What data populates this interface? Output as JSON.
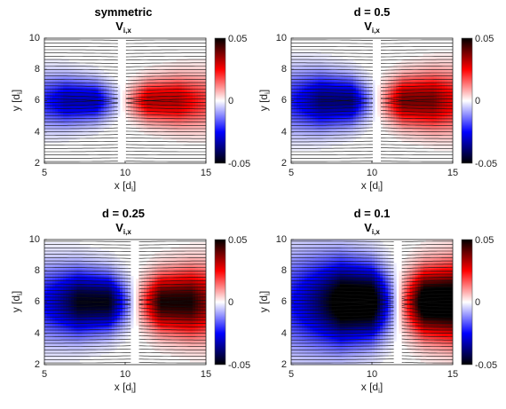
{
  "chart_data": [
    {
      "type": "heatmap",
      "title_line1": "symmetric",
      "title_base": "V",
      "title_sub": "i,x",
      "xlabel_base": "x [d",
      "xlabel_sub": "i",
      "xlabel_close": "]",
      "ylabel_base": "y [d",
      "ylabel_sub": "i",
      "ylabel_close": "]",
      "x_ticks": [
        "5",
        "10",
        "15"
      ],
      "y_ticks": [
        "10",
        "8",
        "6",
        "4",
        "2"
      ],
      "xlim": [
        5,
        15
      ],
      "ylim": [
        2,
        10
      ],
      "colorbar_ticks": [
        "0.05",
        "0",
        "-0.05"
      ],
      "clim": [
        -0.05,
        0.05
      ],
      "colormap": [
        "#000000",
        "#ff0000",
        "#ffffff",
        "#0000ff",
        "#000000"
      ],
      "features": {
        "x_neutral": 9.8,
        "peak": 0.032,
        "neg_width": 1.0,
        "pos_width": 1.0,
        "bulge": 0.0
      }
    },
    {
      "type": "heatmap",
      "title_line1": "d = 0.5",
      "title_base": "V",
      "title_sub": "i,x",
      "xlabel_base": "x [d",
      "xlabel_sub": "i",
      "xlabel_close": "]",
      "ylabel_base": "y [d",
      "ylabel_sub": "i",
      "ylabel_close": "]",
      "x_ticks": [
        "5",
        "10",
        "15"
      ],
      "y_ticks": [
        "10",
        "8",
        "6",
        "4",
        "2"
      ],
      "xlim": [
        5,
        15
      ],
      "ylim": [
        2,
        10
      ],
      "colorbar_ticks": [
        "0.05",
        "0",
        "-0.05"
      ],
      "clim": [
        -0.05,
        0.05
      ],
      "colormap": [
        "#000000",
        "#ff0000",
        "#ffffff",
        "#0000ff",
        "#000000"
      ],
      "features": {
        "x_neutral": 10.3,
        "peak": 0.038,
        "neg_width": 1.1,
        "pos_width": 1.1,
        "bulge": 0.2
      }
    },
    {
      "type": "heatmap",
      "title_line1": "d = 0.25",
      "title_base": "V",
      "title_sub": "i,x",
      "xlabel_base": "x [d",
      "xlabel_sub": "i",
      "xlabel_close": "]",
      "ylabel_base": "y [d",
      "ylabel_sub": "i",
      "ylabel_close": "]",
      "x_ticks": [
        "5",
        "10",
        "15"
      ],
      "y_ticks": [
        "10",
        "8",
        "6",
        "4",
        "2"
      ],
      "xlim": [
        5,
        15
      ],
      "ylim": [
        2,
        10
      ],
      "colorbar_ticks": [
        "0.05",
        "0",
        "-0.05"
      ],
      "clim": [
        -0.05,
        0.05
      ],
      "colormap": [
        "#000000",
        "#ff0000",
        "#ffffff",
        "#0000ff",
        "#000000"
      ],
      "features": {
        "x_neutral": 10.6,
        "peak": 0.048,
        "neg_width": 1.25,
        "pos_width": 1.25,
        "bulge": 0.4
      }
    },
    {
      "type": "heatmap",
      "title_line1": "d = 0.1",
      "title_base": "V",
      "title_sub": "i,x",
      "xlabel_base": "x [d",
      "xlabel_sub": "i",
      "xlabel_close": "]",
      "ylabel_base": "y [d",
      "ylabel_sub": "i",
      "ylabel_close": "]",
      "x_ticks": [
        "5",
        "10",
        "15"
      ],
      "y_ticks": [
        "10",
        "8",
        "6",
        "4",
        "2"
      ],
      "xlim": [
        5,
        15
      ],
      "ylim": [
        2,
        10
      ],
      "colorbar_ticks": [
        "0.05",
        "0",
        "-0.05"
      ],
      "clim": [
        -0.05,
        0.05
      ],
      "colormap": [
        "#000000",
        "#ff0000",
        "#ffffff",
        "#0000ff",
        "#000000"
      ],
      "features": {
        "x_neutral": 11.6,
        "peak": 0.06,
        "neg_width": 1.5,
        "pos_width": 1.35,
        "bulge": 0.7
      }
    }
  ]
}
